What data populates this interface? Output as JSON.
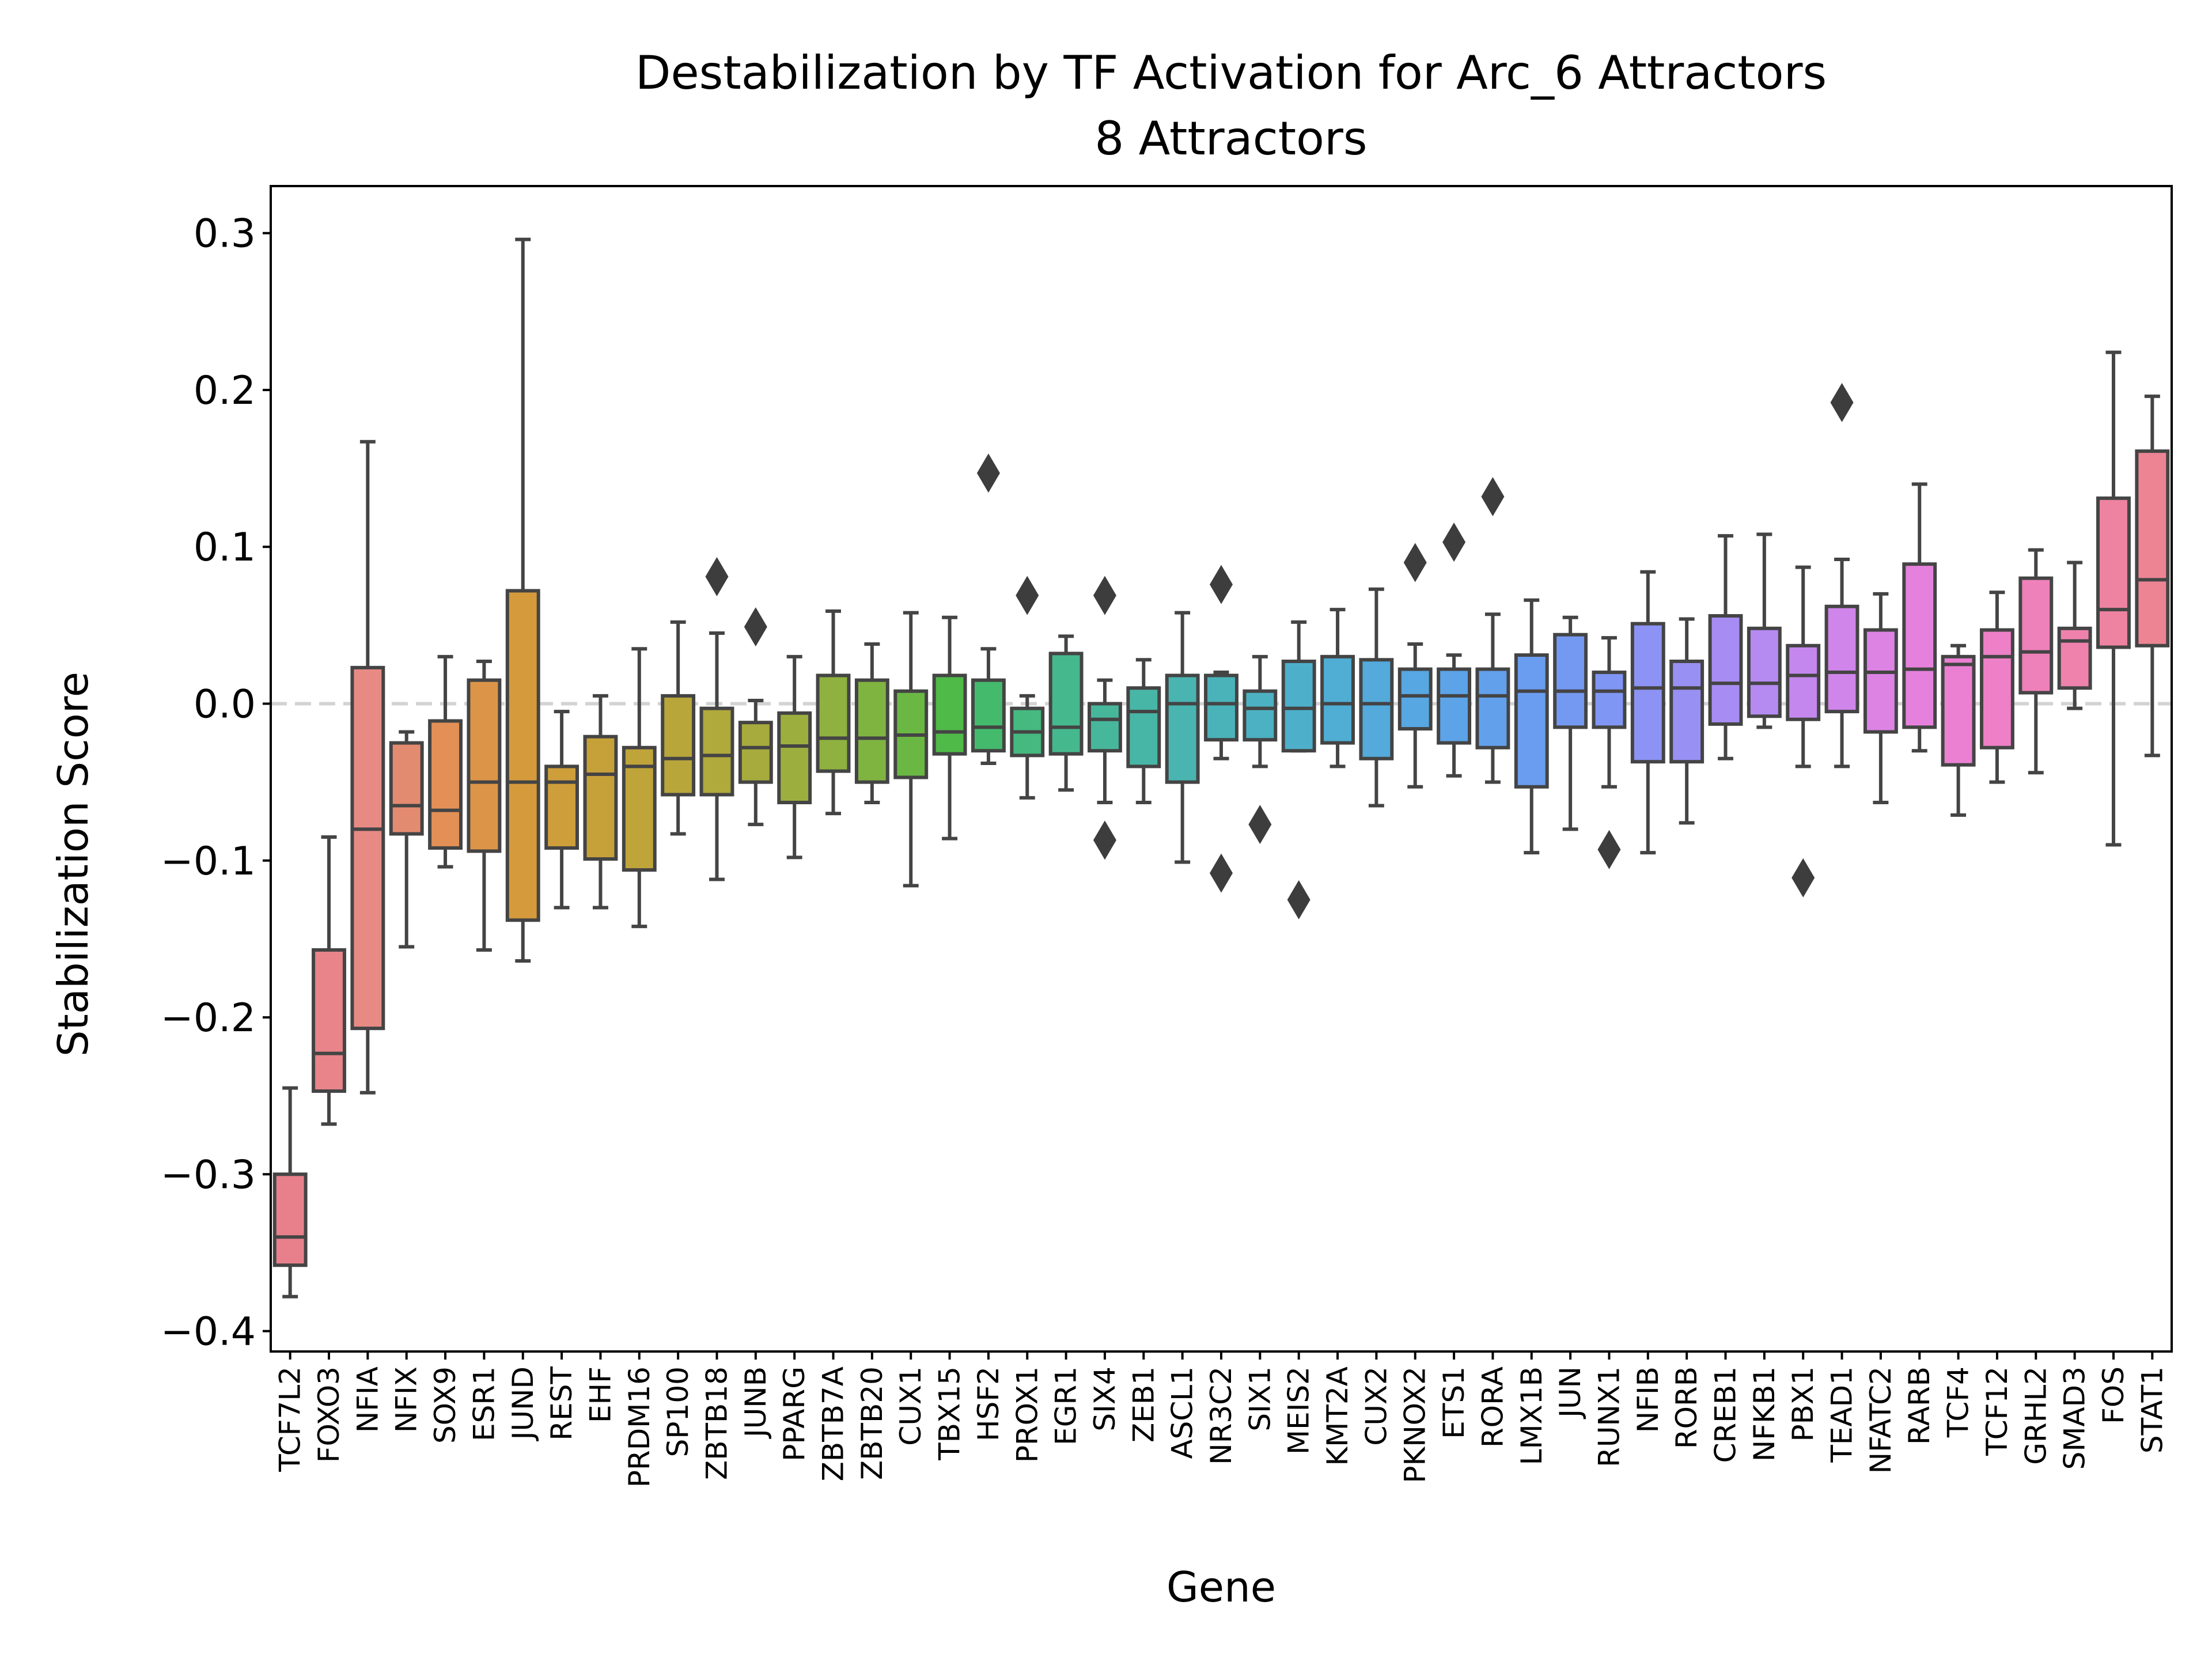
{
  "chart_data": {
    "type": "box",
    "title": "Destabilization by TF Activation for Arc_6 Attractors",
    "subtitle": "8 Attractors",
    "xlabel": "Gene",
    "ylabel": "Stabilization Score",
    "ylim": [
      -0.413,
      0.33
    ],
    "yticks": [
      -0.4,
      -0.3,
      -0.2,
      -0.1,
      0.0,
      0.1,
      0.2,
      0.3
    ],
    "ytick_labels": [
      "−0.4",
      "−0.3",
      "−0.2",
      "−0.1",
      "0.0",
      "0.1",
      "0.2",
      "0.3"
    ],
    "reference_line": 0.0,
    "grid": false,
    "legend": "none",
    "boxes": [
      {
        "label": "TCF7L2",
        "q1": -0.358,
        "median": -0.34,
        "q3": -0.3,
        "whisker_low": -0.378,
        "whisker_high": -0.245,
        "outliers": [],
        "color": "#e8808c"
      },
      {
        "label": "FOXO3",
        "q1": -0.247,
        "median": -0.223,
        "q3": -0.157,
        "whisker_low": -0.268,
        "whisker_high": -0.085,
        "outliers": [],
        "color": "#e8848a"
      },
      {
        "label": "NFIA",
        "q1": -0.207,
        "median": -0.08,
        "q3": 0.023,
        "whisker_low": -0.248,
        "whisker_high": 0.167,
        "outliers": [],
        "color": "#e88a84"
      },
      {
        "label": "NFIX",
        "q1": -0.083,
        "median": -0.065,
        "q3": -0.025,
        "whisker_low": -0.155,
        "whisker_high": -0.018,
        "outliers": [],
        "color": "#e38b70"
      },
      {
        "label": "SOX9",
        "q1": -0.092,
        "median": -0.068,
        "q3": -0.011,
        "whisker_low": -0.104,
        "whisker_high": 0.03,
        "outliers": [],
        "color": "#e29056"
      },
      {
        "label": "ESR1",
        "q1": -0.094,
        "median": -0.05,
        "q3": 0.015,
        "whisker_low": -0.157,
        "whisker_high": 0.027,
        "outliers": [],
        "color": "#dc9548"
      },
      {
        "label": "JUND",
        "q1": -0.138,
        "median": -0.05,
        "q3": 0.072,
        "whisker_low": -0.164,
        "whisker_high": 0.296,
        "outliers": [],
        "color": "#d49a3c"
      },
      {
        "label": "REST",
        "q1": -0.092,
        "median": -0.05,
        "q3": -0.04,
        "whisker_low": -0.13,
        "whisker_high": -0.005,
        "outliers": [],
        "color": "#cd9e3a"
      },
      {
        "label": "EHF",
        "q1": -0.099,
        "median": -0.045,
        "q3": -0.021,
        "whisker_low": -0.13,
        "whisker_high": 0.005,
        "outliers": [],
        "color": "#c6a13a"
      },
      {
        "label": "PRDM16",
        "q1": -0.106,
        "median": -0.04,
        "q3": -0.028,
        "whisker_low": -0.142,
        "whisker_high": 0.035,
        "outliers": [],
        "color": "#bfa43a"
      },
      {
        "label": "SP100",
        "q1": -0.058,
        "median": -0.035,
        "q3": 0.005,
        "whisker_low": -0.083,
        "whisker_high": 0.052,
        "outliers": [],
        "color": "#b8a63b"
      },
      {
        "label": "ZBTB18",
        "q1": -0.058,
        "median": -0.033,
        "q3": -0.003,
        "whisker_low": -0.112,
        "whisker_high": 0.045,
        "outliers": [
          0.081
        ],
        "color": "#b0a93c"
      },
      {
        "label": "JUNB",
        "q1": -0.05,
        "median": -0.028,
        "q3": -0.012,
        "whisker_low": -0.077,
        "whisker_high": 0.002,
        "outliers": [
          0.049
        ],
        "color": "#a7ab3d"
      },
      {
        "label": "PPARG",
        "q1": -0.063,
        "median": -0.027,
        "q3": -0.006,
        "whisker_low": -0.098,
        "whisker_high": 0.03,
        "outliers": [],
        "color": "#9cae3e"
      },
      {
        "label": "ZBTB7A",
        "q1": -0.043,
        "median": -0.022,
        "q3": 0.018,
        "whisker_low": -0.07,
        "whisker_high": 0.059,
        "outliers": [],
        "color": "#8fb140"
      },
      {
        "label": "ZBTB20",
        "q1": -0.05,
        "median": -0.022,
        "q3": 0.015,
        "whisker_low": -0.063,
        "whisker_high": 0.038,
        "outliers": [],
        "color": "#7fb441"
      },
      {
        "label": "CUX1",
        "q1": -0.047,
        "median": -0.02,
        "q3": 0.008,
        "whisker_low": -0.116,
        "whisker_high": 0.058,
        "outliers": [],
        "color": "#6bb744"
      },
      {
        "label": "TBX15",
        "q1": -0.032,
        "median": -0.018,
        "q3": 0.018,
        "whisker_low": -0.086,
        "whisker_high": 0.055,
        "outliers": [],
        "color": "#4fba48"
      },
      {
        "label": "HSF2",
        "q1": -0.03,
        "median": -0.015,
        "q3": 0.015,
        "whisker_low": -0.038,
        "whisker_high": 0.035,
        "outliers": [
          0.147
        ],
        "color": "#44ba6c"
      },
      {
        "label": "PROX1",
        "q1": -0.033,
        "median": -0.018,
        "q3": -0.003,
        "whisker_low": -0.06,
        "whisker_high": 0.005,
        "outliers": [
          0.069
        ],
        "color": "#45b97f"
      },
      {
        "label": "EGR1",
        "q1": -0.032,
        "median": -0.015,
        "q3": 0.032,
        "whisker_low": -0.055,
        "whisker_high": 0.043,
        "outliers": [],
        "color": "#46b88e"
      },
      {
        "label": "SIX4",
        "q1": -0.03,
        "median": -0.01,
        "q3": 0.0,
        "whisker_low": -0.063,
        "whisker_high": 0.015,
        "outliers": [
          0.069,
          -0.087
        ],
        "color": "#47b79b"
      },
      {
        "label": "ZEB1",
        "q1": -0.04,
        "median": -0.005,
        "q3": 0.01,
        "whisker_low": -0.063,
        "whisker_high": 0.028,
        "outliers": [],
        "color": "#48b6a6"
      },
      {
        "label": "ASCL1",
        "q1": -0.05,
        "median": 0.0,
        "q3": 0.018,
        "whisker_low": -0.101,
        "whisker_high": 0.058,
        "outliers": [],
        "color": "#49b4b0"
      },
      {
        "label": "NR3C2",
        "q1": -0.023,
        "median": 0.0,
        "q3": 0.018,
        "whisker_low": -0.035,
        "whisker_high": 0.02,
        "outliers": [
          0.076,
          -0.108
        ],
        "color": "#4ab3b9"
      },
      {
        "label": "SIX1",
        "q1": -0.023,
        "median": -0.003,
        "q3": 0.008,
        "whisker_low": -0.04,
        "whisker_high": 0.03,
        "outliers": [
          -0.077
        ],
        "color": "#4cb1c2"
      },
      {
        "label": "MEIS2",
        "q1": -0.03,
        "median": -0.003,
        "q3": 0.027,
        "whisker_low": -0.03,
        "whisker_high": 0.052,
        "outliers": [
          -0.125
        ],
        "color": "#4eafcb"
      },
      {
        "label": "KMT2A",
        "q1": -0.025,
        "median": 0.0,
        "q3": 0.03,
        "whisker_low": -0.04,
        "whisker_high": 0.06,
        "outliers": [],
        "color": "#50add3"
      },
      {
        "label": "CUX2",
        "q1": -0.035,
        "median": 0.0,
        "q3": 0.028,
        "whisker_low": -0.065,
        "whisker_high": 0.073,
        "outliers": [],
        "color": "#53aadb"
      },
      {
        "label": "PKNOX2",
        "q1": -0.016,
        "median": 0.005,
        "q3": 0.022,
        "whisker_low": -0.053,
        "whisker_high": 0.038,
        "outliers": [
          0.09
        ],
        "color": "#57a7e2"
      },
      {
        "label": "ETS1",
        "q1": -0.025,
        "median": 0.005,
        "q3": 0.022,
        "whisker_low": -0.046,
        "whisker_high": 0.031,
        "outliers": [
          0.103
        ],
        "color": "#5ca3e8"
      },
      {
        "label": "RORA",
        "q1": -0.028,
        "median": 0.005,
        "q3": 0.022,
        "whisker_low": -0.05,
        "whisker_high": 0.057,
        "outliers": [
          0.132
        ],
        "color": "#62a0ec"
      },
      {
        "label": "LMX1B",
        "q1": -0.053,
        "median": 0.008,
        "q3": 0.031,
        "whisker_low": -0.095,
        "whisker_high": 0.066,
        "outliers": [],
        "color": "#6a9df0"
      },
      {
        "label": "JUN",
        "q1": -0.015,
        "median": 0.008,
        "q3": 0.044,
        "whisker_low": -0.08,
        "whisker_high": 0.055,
        "outliers": [],
        "color": "#7499f2"
      },
      {
        "label": "RUNX1",
        "q1": -0.015,
        "median": 0.008,
        "q3": 0.02,
        "whisker_low": -0.053,
        "whisker_high": 0.042,
        "outliers": [
          -0.093
        ],
        "color": "#8096f4"
      },
      {
        "label": "NFIB",
        "q1": -0.037,
        "median": 0.01,
        "q3": 0.051,
        "whisker_low": -0.095,
        "whisker_high": 0.084,
        "outliers": [],
        "color": "#8c93f4"
      },
      {
        "label": "RORB",
        "q1": -0.037,
        "median": 0.01,
        "q3": 0.027,
        "whisker_low": -0.076,
        "whisker_high": 0.054,
        "outliers": [],
        "color": "#9990f4"
      },
      {
        "label": "CREB1",
        "q1": -0.013,
        "median": 0.013,
        "q3": 0.056,
        "whisker_low": -0.035,
        "whisker_high": 0.107,
        "outliers": [],
        "color": "#a78df3"
      },
      {
        "label": "NFKB1",
        "q1": -0.008,
        "median": 0.013,
        "q3": 0.048,
        "whisker_low": -0.015,
        "whisker_high": 0.108,
        "outliers": [],
        "color": "#b58af1"
      },
      {
        "label": "PBX1",
        "q1": -0.01,
        "median": 0.018,
        "q3": 0.037,
        "whisker_low": -0.04,
        "whisker_high": 0.087,
        "outliers": [
          -0.111
        ],
        "color": "#c387ee"
      },
      {
        "label": "TEAD1",
        "q1": -0.005,
        "median": 0.02,
        "q3": 0.062,
        "whisker_low": -0.04,
        "whisker_high": 0.092,
        "outliers": [
          0.192
        ],
        "color": "#d085ea"
      },
      {
        "label": "NFATC2",
        "q1": -0.018,
        "median": 0.02,
        "q3": 0.047,
        "whisker_low": -0.063,
        "whisker_high": 0.07,
        "outliers": [],
        "color": "#dc83e4"
      },
      {
        "label": "RARB",
        "q1": -0.015,
        "median": 0.022,
        "q3": 0.089,
        "whisker_low": -0.03,
        "whisker_high": 0.14,
        "outliers": [],
        "color": "#e581dd"
      },
      {
        "label": "TCF4",
        "q1": -0.039,
        "median": 0.025,
        "q3": 0.03,
        "whisker_low": -0.071,
        "whisker_high": 0.037,
        "outliers": [],
        "color": "#eb80d3"
      },
      {
        "label": "TCF12",
        "q1": -0.028,
        "median": 0.03,
        "q3": 0.047,
        "whisker_low": -0.05,
        "whisker_high": 0.071,
        "outliers": [],
        "color": "#ed80c7"
      },
      {
        "label": "GRHL2",
        "q1": 0.007,
        "median": 0.033,
        "q3": 0.08,
        "whisker_low": -0.044,
        "whisker_high": 0.098,
        "outliers": [],
        "color": "#ee81ba"
      },
      {
        "label": "SMAD3",
        "q1": 0.01,
        "median": 0.04,
        "q3": 0.048,
        "whisker_low": -0.003,
        "whisker_high": 0.09,
        "outliers": [],
        "color": "#ee82ad"
      },
      {
        "label": "FOS",
        "q1": 0.036,
        "median": 0.06,
        "q3": 0.131,
        "whisker_low": -0.09,
        "whisker_high": 0.224,
        "outliers": [],
        "color": "#ed83a0"
      },
      {
        "label": "STAT1",
        "q1": 0.037,
        "median": 0.079,
        "q3": 0.161,
        "whisker_low": -0.033,
        "whisker_high": 0.196,
        "outliers": [],
        "color": "#ec8494"
      }
    ]
  }
}
